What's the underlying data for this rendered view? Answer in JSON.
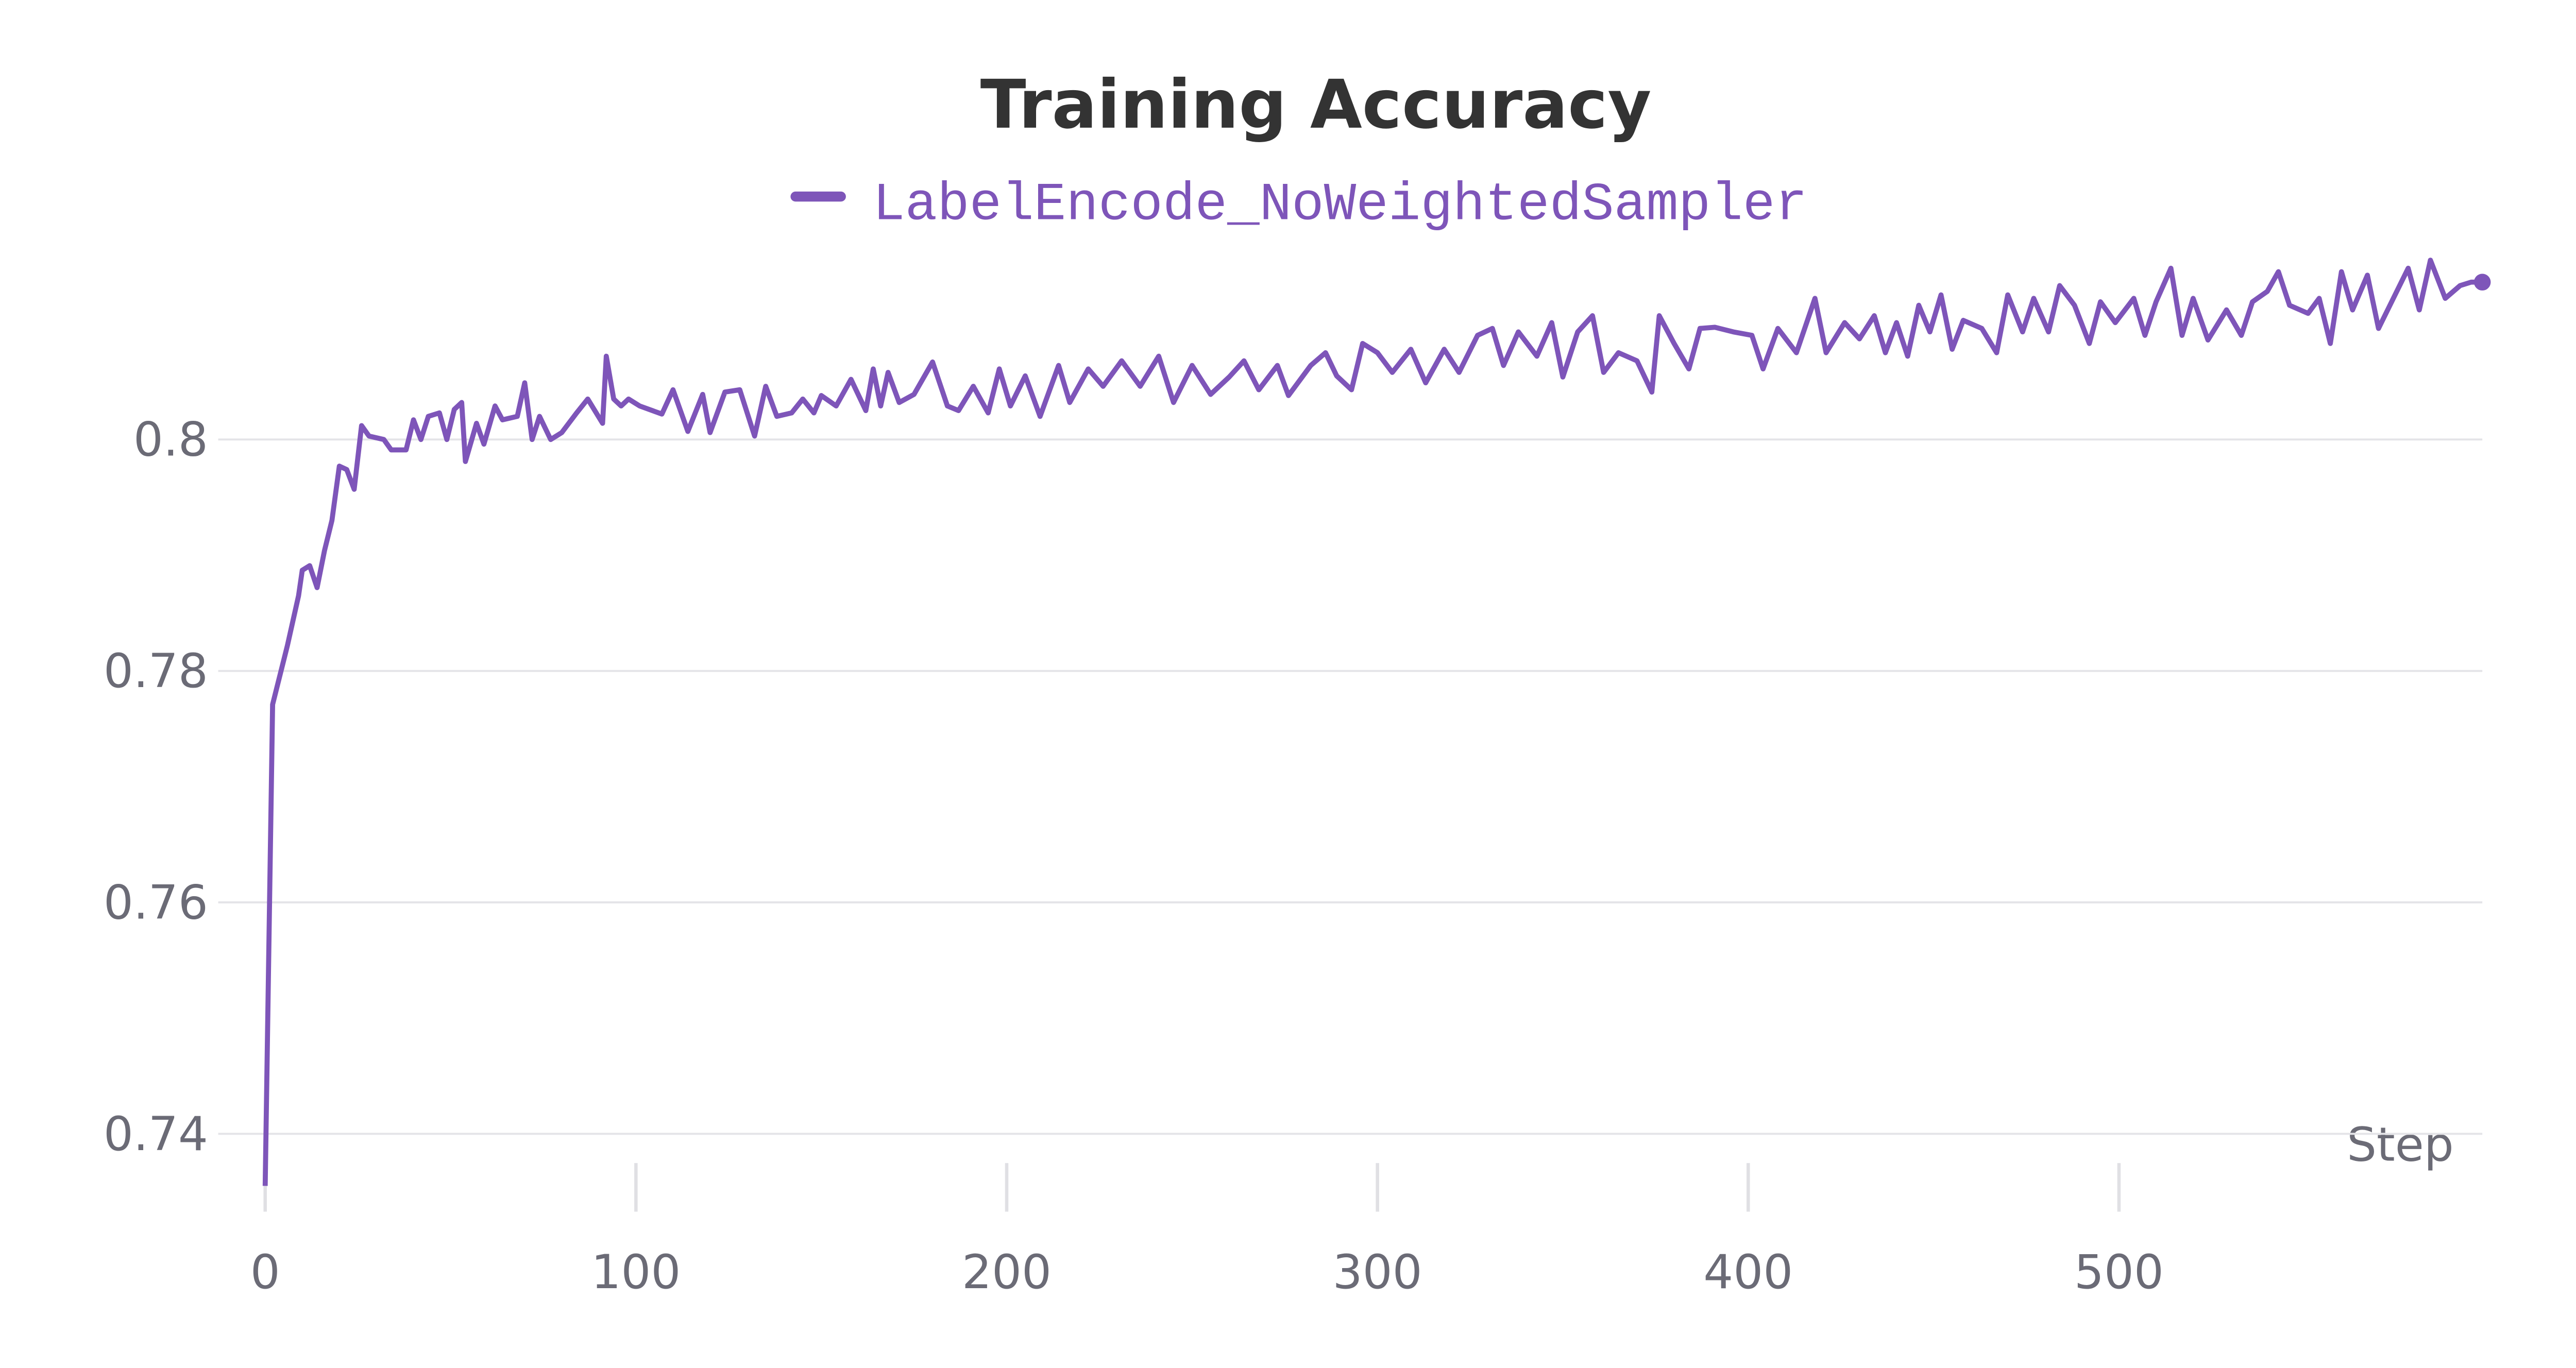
{
  "chart_data": {
    "type": "line",
    "title": "Training Accuracy",
    "x_label": "Step",
    "xlim": [
      0,
      598
    ],
    "ylim": [
      0.7353,
      0.8165
    ],
    "xticks": [
      0,
      100,
      200,
      300,
      400,
      500
    ],
    "yticks": [
      0.74,
      0.76,
      0.78,
      0.8
    ],
    "grid": true,
    "series": [
      {
        "name": "LabelEncode_NoWeightedSampler",
        "color": "#7e55b9",
        "x": [
          0,
          2,
          6,
          9,
          10,
          12,
          14,
          16,
          18,
          20,
          22,
          24,
          26,
          28,
          32,
          34,
          38,
          40,
          42,
          44,
          47,
          49,
          51,
          53,
          54,
          57,
          59,
          62,
          64,
          68,
          70,
          72,
          74,
          77,
          80,
          84,
          87,
          91,
          92,
          94,
          96,
          98,
          101,
          107,
          110,
          114,
          118,
          120,
          124,
          128,
          132,
          135,
          138,
          142,
          145,
          148,
          150,
          154,
          158,
          162,
          164,
          166,
          168,
          171,
          175,
          180,
          184,
          187,
          191,
          195,
          198,
          201,
          205,
          209,
          214,
          217,
          222,
          226,
          231,
          236,
          241,
          245,
          250,
          255,
          260,
          264,
          268,
          273,
          276,
          282,
          286,
          289,
          293,
          296,
          300,
          304,
          309,
          313,
          318,
          322,
          327,
          331,
          334,
          338,
          343,
          347,
          350,
          354,
          358,
          361,
          365,
          370,
          374,
          376,
          380,
          384,
          387,
          391,
          396,
          401,
          404,
          408,
          413,
          418,
          421,
          426,
          430,
          434,
          437,
          440,
          443,
          446,
          449,
          452,
          455,
          458,
          463,
          467,
          470,
          474,
          477,
          481,
          484,
          488,
          492,
          495,
          499,
          504,
          507,
          510,
          514,
          517,
          520,
          524,
          529,
          533,
          536,
          540,
          543,
          546,
          551,
          554,
          557,
          560,
          563,
          567,
          570,
          574,
          578,
          581,
          584,
          588,
          592,
          595,
          598
        ],
        "values": [
          0.7355,
          0.7771,
          0.7822,
          0.7865,
          0.7887,
          0.7891,
          0.7872,
          0.7904,
          0.793,
          0.7977,
          0.7974,
          0.7957,
          0.8012,
          0.8003,
          0.8,
          0.7991,
          0.7991,
          0.8017,
          0.8,
          0.802,
          0.8023,
          0.8,
          0.8026,
          0.8032,
          0.7981,
          0.8014,
          0.7996,
          0.8029,
          0.8017,
          0.802,
          0.8049,
          0.8,
          0.802,
          0.8,
          0.8006,
          0.8023,
          0.8035,
          0.8014,
          0.8072,
          0.8035,
          0.8029,
          0.8035,
          0.8029,
          0.8022,
          0.8043,
          0.8007,
          0.8039,
          0.8006,
          0.8041,
          0.8043,
          0.8003,
          0.8046,
          0.802,
          0.8023,
          0.8035,
          0.8023,
          0.8038,
          0.8029,
          0.8052,
          0.8025,
          0.8061,
          0.8029,
          0.8058,
          0.8032,
          0.8039,
          0.8067,
          0.8029,
          0.8025,
          0.8046,
          0.8023,
          0.8061,
          0.8029,
          0.8055,
          0.802,
          0.8064,
          0.8032,
          0.8061,
          0.8046,
          0.8068,
          0.8046,
          0.8072,
          0.8032,
          0.8064,
          0.8039,
          0.8054,
          0.8068,
          0.8043,
          0.8064,
          0.8038,
          0.8064,
          0.8075,
          0.8055,
          0.8043,
          0.8083,
          0.8075,
          0.8058,
          0.8078,
          0.8049,
          0.8078,
          0.8058,
          0.809,
          0.8096,
          0.8064,
          0.8093,
          0.8072,
          0.8101,
          0.8054,
          0.8093,
          0.8107,
          0.8058,
          0.8075,
          0.8068,
          0.8041,
          0.8107,
          0.8083,
          0.8061,
          0.8096,
          0.8097,
          0.8093,
          0.809,
          0.8061,
          0.8096,
          0.8075,
          0.8122,
          0.8075,
          0.8101,
          0.8087,
          0.8107,
          0.8075,
          0.8101,
          0.8072,
          0.8116,
          0.8093,
          0.8125,
          0.8078,
          0.8103,
          0.8096,
          0.8075,
          0.8125,
          0.8093,
          0.8122,
          0.8093,
          0.8133,
          0.8116,
          0.8083,
          0.8119,
          0.8101,
          0.8122,
          0.809,
          0.8119,
          0.8148,
          0.809,
          0.8122,
          0.8086,
          0.8112,
          0.809,
          0.8119,
          0.8128,
          0.8145,
          0.8116,
          0.8109,
          0.8122,
          0.8083,
          0.8145,
          0.8112,
          0.8142,
          0.8096,
          0.8122,
          0.8148,
          0.8112,
          0.8155,
          0.8122,
          0.8133,
          0.8136,
          0.8136
        ]
      }
    ]
  }
}
